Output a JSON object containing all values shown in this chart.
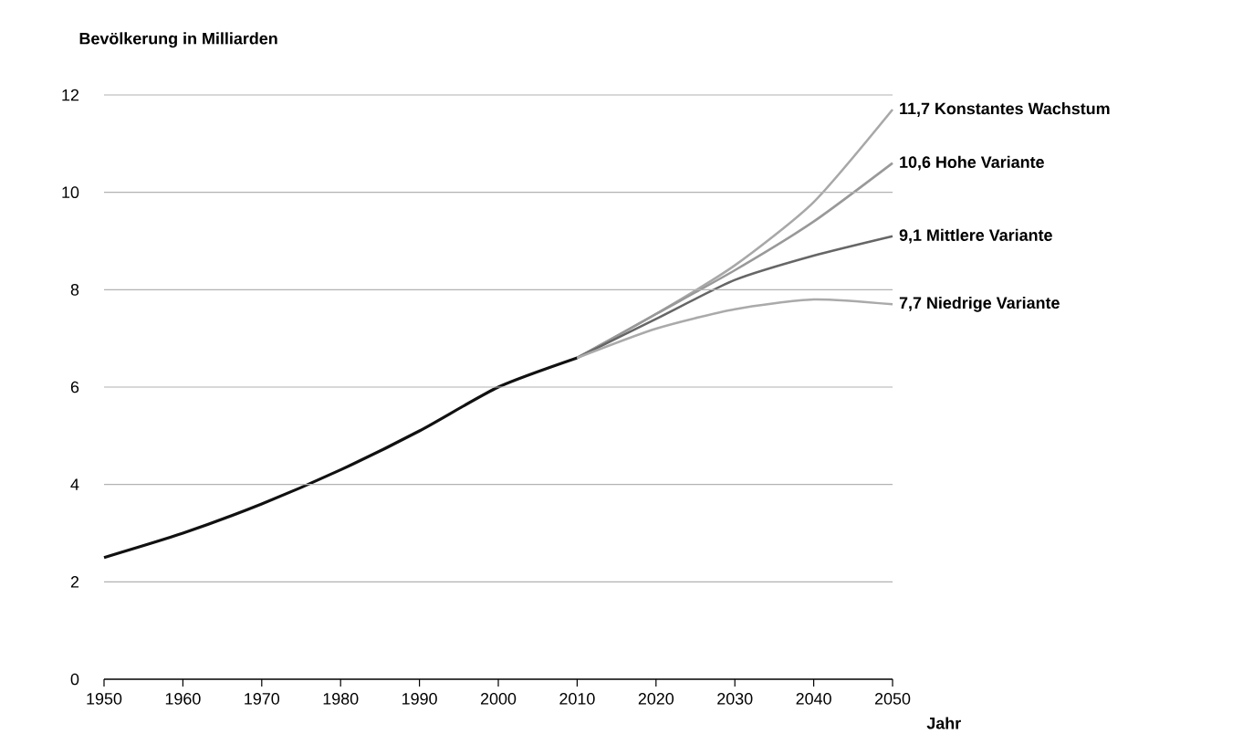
{
  "chart_data": {
    "type": "line",
    "ylabel": "Bevölkerung in Milliarden",
    "xlabel": "Jahr",
    "series": [
      {
        "color": "#111111",
        "x": [
          1950,
          1960,
          1970,
          1980,
          1990,
          2000,
          2010
        ],
        "values": [
          2.5,
          3.0,
          3.6,
          4.3,
          5.1,
          6.0,
          6.6
        ]
      },
      {
        "name": "11,7 Konstantes Wachstum",
        "color": "#a8a8a8",
        "x": [
          2010,
          2020,
          2030,
          2040,
          2050
        ],
        "values": [
          6.6,
          7.5,
          8.5,
          9.8,
          11.7
        ]
      },
      {
        "name": "10,6 Hohe Variante",
        "color": "#999999",
        "x": [
          2010,
          2020,
          2030,
          2040,
          2050
        ],
        "values": [
          6.6,
          7.5,
          8.4,
          9.4,
          10.6
        ]
      },
      {
        "name": "9,1 Mittlere Variante",
        "color": "#666666",
        "x": [
          2010,
          2020,
          2030,
          2040,
          2050
        ],
        "values": [
          6.6,
          7.4,
          8.2,
          8.7,
          9.1
        ]
      },
      {
        "name": "7,7 Niedrige Variante",
        "color": "#aaaaaa",
        "x": [
          2010,
          2020,
          2030,
          2040,
          2050
        ],
        "values": [
          6.6,
          7.2,
          7.6,
          7.8,
          7.7
        ]
      }
    ],
    "xlim": [
      1950,
      2050
    ],
    "xticks": [
      1950,
      1960,
      1970,
      1980,
      1990,
      2000,
      2010,
      2020,
      2030,
      2040,
      2050
    ],
    "ylim": [
      0,
      12
    ],
    "yticks": [
      0,
      2,
      4,
      6,
      8,
      10,
      12
    ],
    "grid": "y",
    "legend": false,
    "marker": "none",
    "line_style": "solid"
  }
}
